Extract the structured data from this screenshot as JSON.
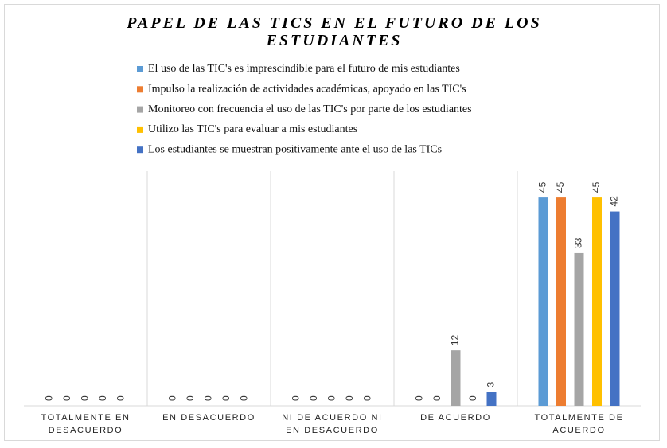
{
  "chart_data": {
    "type": "bar",
    "title": "PAPEL DE LAS TICS EN EL FUTURO DE LOS ESTUDIANTES",
    "categories": [
      "TOTALMENTE EN DESACUERDO",
      "EN DESACUERDO",
      "NI DE ACUERDO NI EN DESACUERDO",
      "DE ACUERDO",
      "TOTALMENTE DE ACUERDO"
    ],
    "series": [
      {
        "name": "El uso de las TIC's es imprescindible para el futuro de mis estudiantes",
        "color": "#5b9bd5",
        "values": [
          0,
          0,
          0,
          0,
          45
        ]
      },
      {
        "name": "Impulso la realización de actividades académicas, apoyado en las TIC's",
        "color": "#ed7d31",
        "values": [
          0,
          0,
          0,
          0,
          45
        ]
      },
      {
        "name": "Monitoreo con frecuencia el uso de las TIC's  por parte de los estudiantes",
        "color": "#a5a5a5",
        "values": [
          0,
          0,
          0,
          12,
          33
        ]
      },
      {
        "name": "Utilizo las TIC's para evaluar a mis estudiantes",
        "color": "#ffc000",
        "values": [
          0,
          0,
          0,
          0,
          45
        ]
      },
      {
        "name": "Los estudiantes se muestran positivamente ante el uso de las TICs",
        "color": "#4472c4",
        "values": [
          0,
          0,
          0,
          3,
          42
        ]
      }
    ]
  }
}
